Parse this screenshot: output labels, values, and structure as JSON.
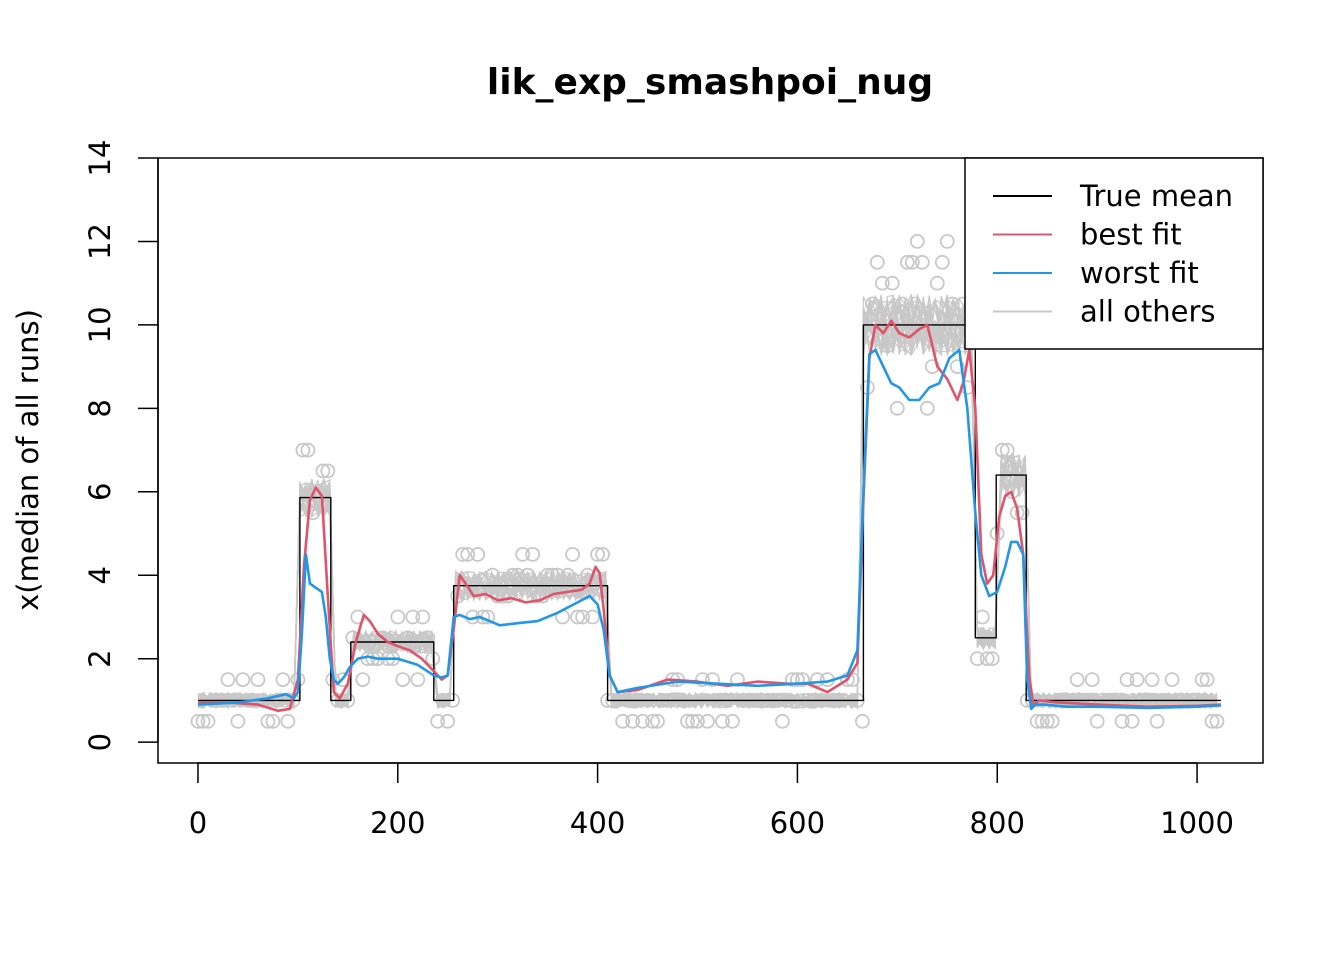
{
  "chart_data": {
    "type": "line",
    "title": "lik_exp_smashpoi_nug",
    "xlabel": "",
    "ylabel": "x(median of all runs)",
    "xlim": [
      -40,
      1066
    ],
    "ylim": [
      -0.5,
      14
    ],
    "x_ticks": [
      0,
      200,
      400,
      600,
      800,
      1000
    ],
    "y_ticks": [
      0,
      2,
      4,
      6,
      8,
      10,
      12,
      14
    ],
    "x_tick_labels": [
      "0",
      "200",
      "400",
      "600",
      "800",
      "1000"
    ],
    "y_tick_labels": [
      "0",
      "2",
      "4",
      "6",
      "8",
      "10",
      "12",
      "14"
    ],
    "grid": false,
    "legend_position": "top-right",
    "colors": {
      "true_mean": "#000000",
      "best_fit": "#DF536B",
      "worst_fit": "#2297E6",
      "all_others": "#C8C8C8",
      "points": "#C8C8C8"
    },
    "legend": [
      {
        "label": "True mean",
        "color": "#000000"
      },
      {
        "label": "best fit",
        "color": "#DF536B"
      },
      {
        "label": "worst fit",
        "color": "#2297E6"
      },
      {
        "label": "all others",
        "color": "#C8C8C8"
      }
    ],
    "series": [
      {
        "key": "true_mean",
        "style": "step",
        "x": [
          0,
          102,
          102,
          133,
          133,
          153,
          153,
          236,
          236,
          256,
          256,
          410,
          410,
          666,
          666,
          778,
          778,
          799,
          799,
          829,
          829,
          1024
        ],
        "y": [
          1,
          1,
          5.86,
          5.86,
          1,
          1,
          2.4,
          2.4,
          1,
          1,
          3.75,
          3.75,
          1,
          1,
          10,
          10,
          2.5,
          2.5,
          6.4,
          6.4,
          1,
          1
        ]
      },
      {
        "key": "best_fit",
        "x": [
          0,
          30,
          60,
          80,
          92,
          100,
          106,
          112,
          118,
          124,
          130,
          136,
          142,
          150,
          158,
          166,
          172,
          180,
          190,
          200,
          212,
          224,
          236,
          244,
          250,
          256,
          262,
          268,
          276,
          288,
          300,
          314,
          328,
          342,
          356,
          370,
          384,
          392,
          398,
          402,
          406,
          412,
          420,
          440,
          470,
          500,
          530,
          560,
          590,
          610,
          630,
          650,
          660,
          666,
          672,
          678,
          686,
          694,
          702,
          712,
          722,
          730,
          740,
          750,
          760,
          766,
          772,
          778,
          784,
          790,
          796,
          802,
          808,
          814,
          820,
          826,
          832,
          836,
          842,
          860,
          900,
          950,
          1000,
          1024
        ],
        "y": [
          0.95,
          0.95,
          0.9,
          0.75,
          0.8,
          1.5,
          4.2,
          5.8,
          6.1,
          5.9,
          3.5,
          1.2,
          1.05,
          1.4,
          2.4,
          3.05,
          2.9,
          2.6,
          2.4,
          2.3,
          2.2,
          2.0,
          1.7,
          1.5,
          1.6,
          2.7,
          4.0,
          3.8,
          3.5,
          3.55,
          3.4,
          3.45,
          3.35,
          3.4,
          3.55,
          3.6,
          3.65,
          3.8,
          4.2,
          4.05,
          3.2,
          1.6,
          1.2,
          1.25,
          1.5,
          1.45,
          1.35,
          1.45,
          1.4,
          1.4,
          1.2,
          1.5,
          1.9,
          5.8,
          9.2,
          10.0,
          9.8,
          10.1,
          9.8,
          9.7,
          9.9,
          10.0,
          9.0,
          8.7,
          8.2,
          8.6,
          9.4,
          8.0,
          4.5,
          3.8,
          4.0,
          5.4,
          5.9,
          6.0,
          5.6,
          4.5,
          1.6,
          0.9,
          1.0,
          0.95,
          0.9,
          0.85,
          0.87,
          0.9
        ]
      },
      {
        "key": "worst_fit",
        "x": [
          0,
          40,
          70,
          88,
          96,
          100,
          104,
          108,
          112,
          118,
          124,
          128,
          132,
          136,
          140,
          146,
          152,
          160,
          170,
          180,
          200,
          220,
          236,
          244,
          250,
          256,
          262,
          272,
          282,
          292,
          302,
          320,
          340,
          360,
          380,
          392,
          400,
          406,
          412,
          420,
          440,
          480,
          520,
          560,
          600,
          630,
          650,
          660,
          666,
          672,
          678,
          686,
          694,
          702,
          712,
          722,
          732,
          742,
          752,
          762,
          770,
          778,
          784,
          792,
          800,
          808,
          814,
          820,
          826,
          830,
          834,
          838,
          846,
          870,
          900,
          950,
          1000,
          1024
        ],
        "y": [
          0.9,
          0.95,
          1.05,
          1.15,
          1.05,
          1.2,
          2.6,
          4.5,
          3.8,
          3.7,
          3.6,
          3.0,
          2.0,
          1.5,
          1.4,
          1.55,
          1.8,
          2.0,
          2.05,
          2.0,
          2.0,
          1.85,
          1.6,
          1.55,
          1.6,
          3.0,
          3.05,
          2.95,
          3.0,
          2.9,
          2.8,
          2.85,
          2.9,
          3.1,
          3.35,
          3.5,
          3.3,
          2.7,
          1.6,
          1.2,
          1.3,
          1.45,
          1.4,
          1.35,
          1.4,
          1.45,
          1.6,
          2.2,
          6.0,
          9.3,
          9.4,
          9.0,
          8.6,
          8.5,
          8.2,
          8.2,
          8.5,
          8.6,
          9.2,
          9.4,
          8.0,
          5.5,
          4.0,
          3.5,
          3.6,
          4.2,
          4.8,
          4.8,
          4.5,
          1.5,
          0.8,
          0.9,
          0.9,
          0.85,
          0.85,
          0.82,
          0.85,
          0.88
        ]
      }
    ]
  }
}
